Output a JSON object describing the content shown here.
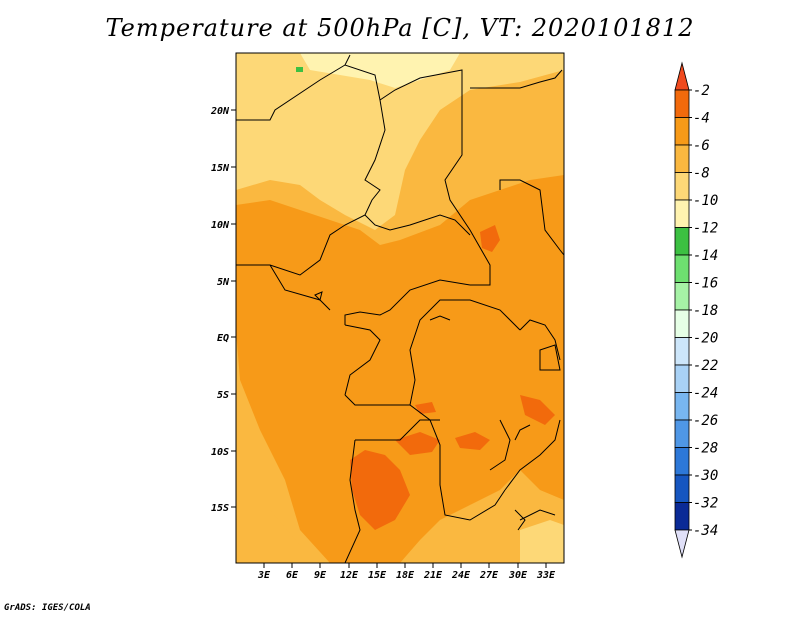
{
  "title": "Temperature at 500hPa [C], VT: 2020101812",
  "credit": "GrADS: IGES/COLA",
  "map": {
    "lat_labels": [
      "20N",
      "15N",
      "10N",
      "5N",
      "EQ",
      "5S",
      "10S",
      "15S"
    ],
    "lon_labels": [
      "3E",
      "6E",
      "9E",
      "12E",
      "15E",
      "18E",
      "21E",
      "24E",
      "27E",
      "30E",
      "33E"
    ]
  },
  "colorbar": {
    "labels": [
      "-2",
      "-4",
      "-6",
      "-8",
      "-10",
      "-12",
      "-14",
      "-16",
      "-18",
      "-20",
      "-22",
      "-24",
      "-26",
      "-28",
      "-30",
      "-32",
      "-34"
    ],
    "colors": [
      "#f04a1e",
      "#f26a0c",
      "#f79a18",
      "#fab840",
      "#fdd877",
      "#fff3b0",
      "#3cc042",
      "#6ee070",
      "#a6f2a6",
      "#e6ffe6",
      "#cde6fa",
      "#a9d2f6",
      "#78b6f0",
      "#4f97e6",
      "#2d78d8",
      "#1656c0",
      "#0a2a96",
      "#e0e0f8"
    ]
  }
}
